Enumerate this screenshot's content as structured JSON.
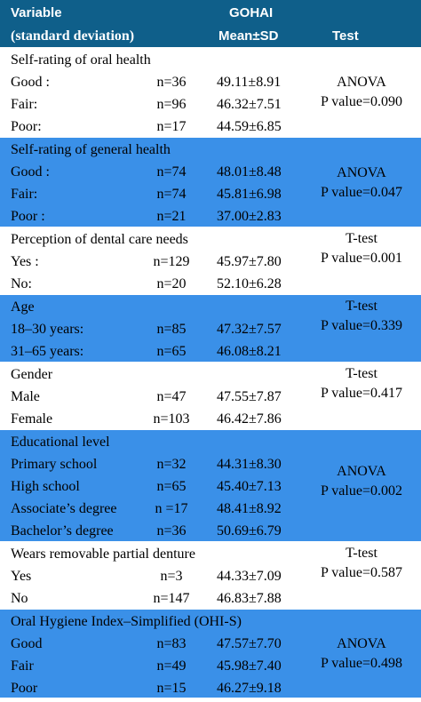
{
  "header": {
    "variable_line1": "Variable",
    "variable_line2": "(standard deviation)",
    "gohai_line1": "GOHAI",
    "gohai_line2": "Mean±SD",
    "test": "Test"
  },
  "groups": [
    {
      "title": "Self-rating of oral health",
      "rows": [
        {
          "label": "Good :",
          "n": "n=36",
          "mean": "49.11±8.91"
        },
        {
          "label": "Fair:",
          "n": "n=96",
          "mean": "46.32±7.51"
        },
        {
          "label": "Poor:",
          "n": "n=17",
          "mean": "44.59±6.85"
        }
      ],
      "test": "ANOVA",
      "p": "P value=0.090"
    },
    {
      "title": "Self-rating of general health",
      "rows": [
        {
          "label": "Good :",
          "n": "n=74",
          "mean": "48.01±8.48"
        },
        {
          "label": "Fair:",
          "n": "n=74",
          "mean": "45.81±6.98"
        },
        {
          "label": "Poor :",
          "n": "n=21",
          "mean": "37.00±2.83"
        }
      ],
      "test": "ANOVA",
      "p": "P value=0.047"
    },
    {
      "title": "Perception of dental care needs",
      "rows": [
        {
          "label": "Yes :",
          "n": "n=129",
          "mean": "45.97±7.80"
        },
        {
          "label": "No:",
          "n": "n=20",
          "mean": "52.10±6.28"
        }
      ],
      "test": "T-test",
      "p": "P value=0.001"
    },
    {
      "title": "Age",
      "rows": [
        {
          "label": "18–30 years:",
          "n": "n=85",
          "mean": "47.32±7.57"
        },
        {
          "label": "31–65 years:",
          "n": "n=65",
          "mean": "46.08±8.21"
        }
      ],
      "test": "T-test",
      "p": "P value=0.339"
    },
    {
      "title": "Gender",
      "rows": [
        {
          "label": "Male",
          "n": "n=47",
          "mean": "47.55±7.87"
        },
        {
          "label": "Female",
          "n": "n=103",
          "mean": "46.42±7.86"
        }
      ],
      "test": "T-test",
      "p": "P value=0.417"
    },
    {
      "title": "Educational level",
      "rows": [
        {
          "label": "Primary school",
          "n": "n=32",
          "mean": "44.31±8.30"
        },
        {
          "label": "High school",
          "n": "n=65",
          "mean": "45.40±7.13"
        },
        {
          "label": "Associate’s degree",
          "n": "n =17",
          "mean": "48.41±8.92"
        },
        {
          "label": "Bachelor’s degree",
          "n": "n=36",
          "mean": "50.69±6.79"
        }
      ],
      "test": "ANOVA",
      "p": "P value=0.002"
    },
    {
      "title": "Wears removable partial denture",
      "rows": [
        {
          "label": "Yes",
          "n": "n=3",
          "mean": "44.33±7.09"
        },
        {
          "label": "No",
          "n": "n=147",
          "mean": "46.83±7.88"
        }
      ],
      "test": "T-test",
      "p": "P value=0.587"
    },
    {
      "title": "Oral Hygiene Index–Simplified (OHI-S)",
      "rows": [
        {
          "label": "Good",
          "n": "n=83",
          "mean": "47.57±7.70"
        },
        {
          "label": "Fair",
          "n": "n=49",
          "mean": "45.98±7.40"
        },
        {
          "label": "Poor",
          "n": "n=15",
          "mean": "46.27±9.18"
        }
      ],
      "test": "ANOVA",
      "p": "P value=0.498"
    }
  ]
}
